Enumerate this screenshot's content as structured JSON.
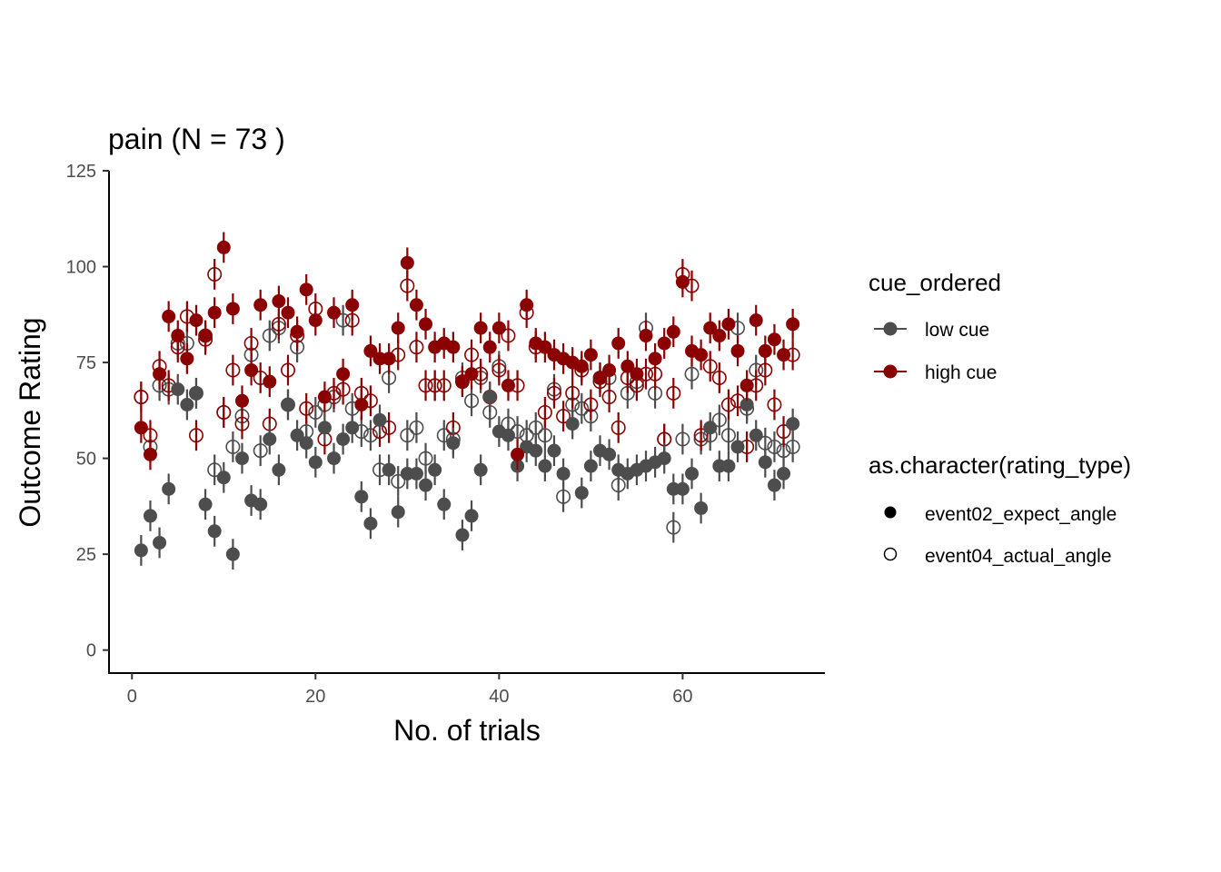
{
  "chart_data": {
    "type": "scatter",
    "title": "pain (N =  73 )",
    "xlabel": "No. of trials",
    "ylabel": "Outcome Rating",
    "xlim": [
      -2.5,
      75.5
    ],
    "ylim": [
      -6,
      125
    ],
    "xticks": [
      0,
      20,
      40,
      60
    ],
    "yticks": [
      0,
      25,
      50,
      75,
      100,
      125
    ],
    "grid": false,
    "legend_placement": "right",
    "legend_color": {
      "title": "cue_ordered",
      "entries": [
        {
          "label": "low cue",
          "color": "#4d4d4d"
        },
        {
          "label": "high cue",
          "color": "#8b0000"
        }
      ]
    },
    "legend_shape": {
      "title": "as.character(rating_type)",
      "entries": [
        {
          "label": "event02_expect_angle",
          "shape": "filled-circle"
        },
        {
          "label": "event04_actual_angle",
          "shape": "open-circle"
        }
      ]
    },
    "x": [
      1,
      2,
      3,
      4,
      5,
      6,
      7,
      8,
      9,
      10,
      11,
      12,
      13,
      14,
      15,
      16,
      17,
      18,
      19,
      20,
      21,
      22,
      23,
      24,
      25,
      26,
      27,
      28,
      29,
      30,
      31,
      32,
      33,
      34,
      35,
      36,
      37,
      38,
      39,
      40,
      41,
      42,
      43,
      44,
      45,
      46,
      47,
      48,
      49,
      50,
      51,
      52,
      53,
      54,
      55,
      56,
      57,
      58,
      59,
      60,
      61,
      62,
      63,
      64,
      65,
      66,
      67,
      68,
      69,
      70,
      71,
      72
    ],
    "error_half_width": 4,
    "series": [
      {
        "name": "low cue / event02_expect_angle",
        "cue": "low cue",
        "rating_type": "event02_expect_angle",
        "color": "#4d4d4d",
        "filled": true,
        "values": [
          26,
          35,
          28,
          42,
          68,
          64,
          67,
          38,
          31,
          45,
          25,
          50,
          39,
          38,
          55,
          47,
          64,
          56,
          54,
          49,
          58,
          50,
          55,
          58,
          40,
          33,
          60,
          47,
          36,
          46,
          46,
          43,
          47,
          38,
          54,
          30,
          35,
          47,
          66,
          57,
          56,
          48,
          53,
          52,
          48,
          52,
          46,
          59,
          41,
          48,
          52,
          51,
          47,
          46,
          47,
          48,
          49,
          50,
          42,
          42,
          46,
          37,
          58,
          48,
          48,
          53,
          64,
          56,
          49,
          43,
          46,
          59
        ]
      },
      {
        "name": "low cue / event04_actual_angle",
        "cue": "low cue",
        "rating_type": "event04_actual_angle",
        "color": "#4d4d4d",
        "filled": false,
        "values": [
          66,
          53,
          69,
          68,
          80,
          80,
          67,
          82,
          47,
          62,
          53,
          61,
          77,
          52,
          82,
          84,
          64,
          79,
          57,
          62,
          64,
          66,
          86,
          63,
          57,
          56,
          47,
          71,
          44,
          56,
          58,
          50,
          69,
          56,
          55,
          71,
          65,
          71,
          62,
          74,
          59,
          57,
          56,
          58,
          56,
          68,
          40,
          64,
          63,
          61,
          71,
          71,
          43,
          67,
          70,
          84,
          67,
          55,
          32,
          55,
          72,
          55,
          56,
          60,
          56,
          84,
          63,
          73,
          54,
          53,
          52,
          53
        ]
      },
      {
        "name": "high cue / event02_expect_angle",
        "cue": "high cue",
        "rating_type": "event02_expect_angle",
        "color": "#8b0000",
        "filled": true,
        "values": [
          58,
          51,
          72,
          87,
          82,
          76,
          86,
          82,
          88,
          105,
          89,
          65,
          73,
          90,
          70,
          91,
          88,
          83,
          94,
          86,
          66,
          88,
          72,
          90,
          64,
          78,
          76,
          76,
          84,
          101,
          90,
          85,
          79,
          80,
          79,
          70,
          72,
          84,
          79,
          84,
          69,
          51,
          90,
          80,
          79,
          77,
          76,
          75,
          74,
          77,
          71,
          73,
          80,
          74,
          72,
          82,
          76,
          80,
          83,
          96,
          78,
          77,
          84,
          82,
          85,
          78,
          69,
          86,
          78,
          81,
          77,
          85
        ]
      },
      {
        "name": "high cue / event04_actual_angle",
        "cue": "high cue",
        "rating_type": "event04_actual_angle",
        "color": "#8b0000",
        "filled": false,
        "values": [
          66,
          56,
          74,
          69,
          79,
          87,
          56,
          81,
          98,
          62,
          73,
          59,
          80,
          71,
          59,
          85,
          73,
          82,
          63,
          89,
          55,
          67,
          68,
          86,
          67,
          65,
          57,
          58,
          77,
          95,
          79,
          69,
          69,
          69,
          58,
          70,
          77,
          72,
          66,
          73,
          82,
          69,
          88,
          79,
          62,
          67,
          61,
          67,
          73,
          64,
          70,
          66,
          58,
          71,
          69,
          72,
          72,
          55,
          67,
          98,
          95,
          56,
          74,
          71,
          64,
          65,
          53,
          69,
          73,
          64,
          57,
          77
        ]
      }
    ]
  }
}
